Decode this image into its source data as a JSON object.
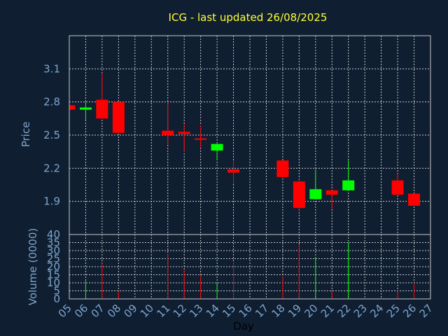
{
  "chart_data": {
    "type": "candlestick",
    "title": "ICG - last updated 26/08/2025",
    "xlabel": "Day",
    "ylabel_price": "Price",
    "ylabel_volume": "Volume (0000)",
    "x_ticks": [
      "05",
      "06",
      "07",
      "08",
      "09",
      "10",
      "11",
      "12",
      "13",
      "14",
      "15",
      "16",
      "17",
      "18",
      "19",
      "20",
      "21",
      "22",
      "23",
      "24",
      "25",
      "26",
      "27"
    ],
    "price_ticks": [
      1.9,
      2.2,
      2.5,
      2.8,
      3.1
    ],
    "price_tick_labels": [
      "1.9",
      "2.2",
      "2.5",
      "2.8",
      "3.1"
    ],
    "price_range": [
      1.6,
      3.4
    ],
    "volume_ticks": [
      0,
      5,
      10,
      15,
      20,
      25,
      30,
      35,
      40
    ],
    "volume_tick_labels": [
      "0",
      "5",
      "10",
      "15",
      "20",
      "25",
      "30",
      "35",
      "40"
    ],
    "volume_range": [
      0,
      40
    ],
    "grid": true,
    "colors": {
      "up": "#00ff00",
      "down": "#ff0000",
      "grid": "#c8c8c8",
      "background": "#0f1e30",
      "title": "#ffff33",
      "text": "#7ea6cf"
    },
    "candles": [
      {
        "day": "05",
        "open": 2.77,
        "close": 2.73,
        "high": 2.78,
        "low": 2.73,
        "volume": 0
      },
      {
        "day": "06",
        "open": 2.73,
        "close": 2.75,
        "high": 2.8,
        "low": 2.64,
        "volume": 11
      },
      {
        "day": "07",
        "open": 2.82,
        "close": 2.65,
        "high": 3.06,
        "low": 2.65,
        "volume": 22
      },
      {
        "day": "08",
        "open": 2.8,
        "close": 2.52,
        "high": 2.8,
        "low": 2.52,
        "volume": 5
      },
      {
        "day": "11",
        "open": 2.54,
        "close": 2.5,
        "high": 2.8,
        "low": 2.41,
        "volume": 28
      },
      {
        "day": "12",
        "open": 2.53,
        "close": 2.51,
        "high": 2.6,
        "low": 2.35,
        "volume": 18
      },
      {
        "day": "13",
        "open": 2.47,
        "close": 2.46,
        "high": 2.59,
        "low": 2.39,
        "volume": 15
      },
      {
        "day": "14",
        "open": 2.36,
        "close": 2.42,
        "high": 2.42,
        "low": 2.28,
        "volume": 10
      },
      {
        "day": "15",
        "open": 2.19,
        "close": 2.16,
        "high": 2.27,
        "low": 2.06,
        "volume": 23
      },
      {
        "day": "18",
        "open": 2.27,
        "close": 2.12,
        "high": 2.27,
        "low": 2.12,
        "volume": 14
      },
      {
        "day": "19",
        "open": 2.08,
        "close": 1.84,
        "high": 2.1,
        "low": 1.82,
        "volume": 34
      },
      {
        "day": "20",
        "open": 1.92,
        "close": 2.01,
        "high": 2.19,
        "low": 1.92,
        "volume": 26
      },
      {
        "day": "21",
        "open": 2.0,
        "close": 1.96,
        "high": 2.0,
        "low": 1.83,
        "volume": 5
      },
      {
        "day": "22",
        "open": 2.0,
        "close": 2.09,
        "high": 2.27,
        "low": 2.0,
        "volume": 35
      },
      {
        "day": "25",
        "open": 2.09,
        "close": 1.96,
        "high": 2.15,
        "low": 1.96,
        "volume": 5
      },
      {
        "day": "26",
        "open": 1.97,
        "close": 1.86,
        "high": 1.97,
        "low": 1.86,
        "volume": 10
      }
    ]
  }
}
